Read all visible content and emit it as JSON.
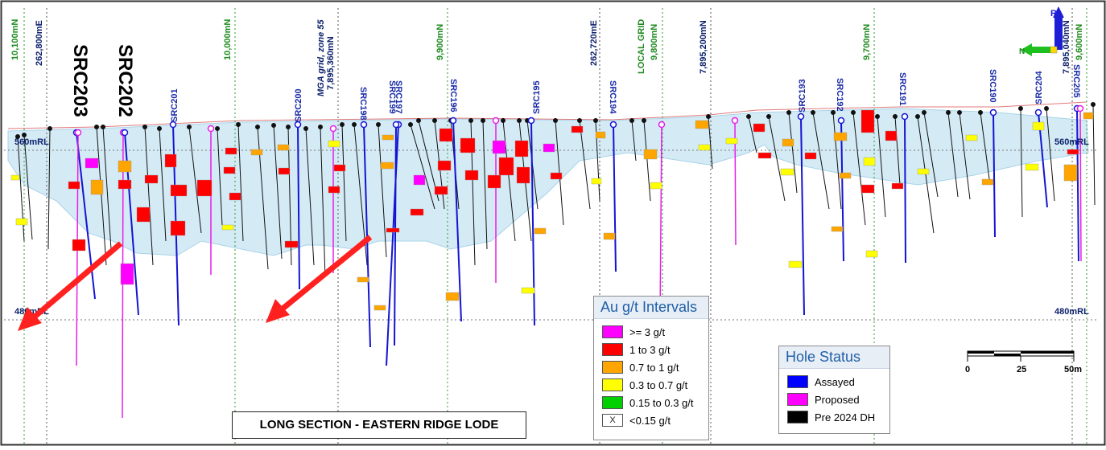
{
  "section_title": "LONG SECTION - EASTERN RIDGE LODE",
  "grid_labels": {
    "green": [
      "10,100mN",
      "10,000mN",
      "9,900mN",
      "LOCAL GRID 9,800mN",
      "9,700mN",
      "9,600mN"
    ],
    "navy": [
      "262,800mE",
      "MGA grid, zone 55 7,895,360mN",
      "262,720mE",
      "7,895,200mN",
      "7,895,040mN"
    ]
  },
  "rl_labels": [
    "560mRL",
    "480mRL"
  ],
  "big_labels": [
    "SRC203",
    "SRC202"
  ],
  "hole_labels": [
    "SRC201",
    "SRC200",
    "SRC198",
    "SRC197",
    "SRC199",
    "SRC196",
    "SRC195",
    "SRC194",
    "SRC193",
    "SRC192",
    "SRC191",
    "SRC190",
    "SRC204",
    "SRC205"
  ],
  "north_arrow": {
    "label": "RL",
    "axis": "N"
  },
  "scale_bar": {
    "ticks": [
      "0",
      "25",
      "50m"
    ]
  },
  "legend_au": {
    "title": "Au g/t Intervals",
    "items": [
      {
        "label": ">= 3 g/t",
        "color": "#ff00ff",
        "mark": ""
      },
      {
        "label": "1 to 3 g/t",
        "color": "#ff0000",
        "mark": ""
      },
      {
        "label": "0.7 to 1 g/t",
        "color": "#ffa500",
        "mark": ""
      },
      {
        "label": "0.3 to 0.7 g/t",
        "color": "#ffff00",
        "mark": ""
      },
      {
        "label": "0.15 to 0.3 g/t",
        "color": "#00d000",
        "mark": ""
      },
      {
        "label": "<0.15 g/t",
        "color": "#ffffff",
        "mark": "X"
      }
    ]
  },
  "legend_hole": {
    "title": "Hole Status",
    "items": [
      {
        "label": "Assayed",
        "color": "#0000ff"
      },
      {
        "label": "Proposed",
        "color": "#ff00ff"
      },
      {
        "label": "Pre 2024 DH",
        "color": "#000000"
      }
    ]
  },
  "colors": {
    "lode": "#cfe9f5",
    "assayed": "#1414d2",
    "proposed": "#e81ee8",
    "pre2024": "#111111",
    "grid_green": "#1f8a1f",
    "grid_navy": "#0b1f6b",
    "arrow": "#ff2020"
  }
}
